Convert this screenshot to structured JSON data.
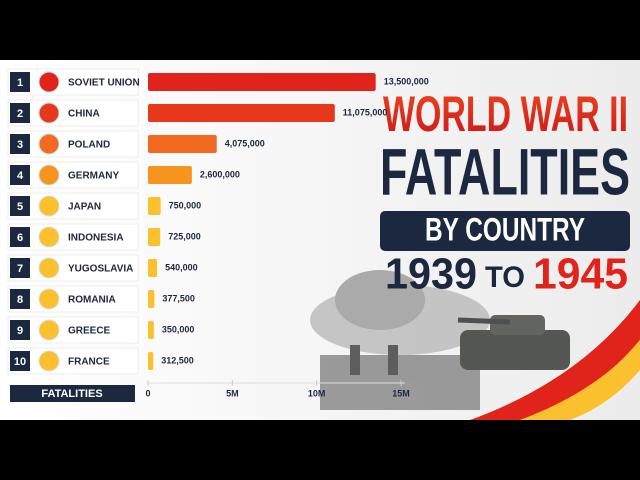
{
  "chart_data": {
    "type": "bar",
    "orientation": "horizontal",
    "title_lines": [
      "WORLD WAR II",
      "FATALITIES",
      "BY COUNTRY"
    ],
    "period": {
      "start": "1939",
      "connector": "TO",
      "end": "1945"
    },
    "x_label": "FATALITIES",
    "ranks": [
      1,
      2,
      3,
      4,
      5,
      6,
      7,
      8,
      9,
      10
    ],
    "categories": [
      "SOVIET UNION",
      "CHINA",
      "POLAND",
      "GERMANY",
      "JAPAN",
      "INDONESIA",
      "YUGOSLAVIA",
      "ROMANIA",
      "GREECE",
      "FRANCE"
    ],
    "values": [
      13500000,
      11075000,
      4075000,
      2600000,
      750000,
      725000,
      540000,
      377500,
      350000,
      312500
    ],
    "value_labels": [
      "13,500,000",
      "11,075,000",
      "4,075,000",
      "2,600,000",
      "750,000",
      "725,000",
      "540,000",
      "377,500",
      "350,000",
      "312,500"
    ],
    "colors": [
      "#e0241b",
      "#e8381c",
      "#f26a21",
      "#f7941d",
      "#fbc02d",
      "#fbc02d",
      "#fbc02d",
      "#fbc02d",
      "#fbc02d",
      "#fbc02d"
    ],
    "xlim": [
      0,
      15000000
    ],
    "xticks": [
      0,
      {
        "value": 5000000,
        "label": "5M"
      },
      {
        "value": 10000000,
        "label": "10M"
      },
      {
        "value": 15000000,
        "label": "15M"
      }
    ]
  }
}
